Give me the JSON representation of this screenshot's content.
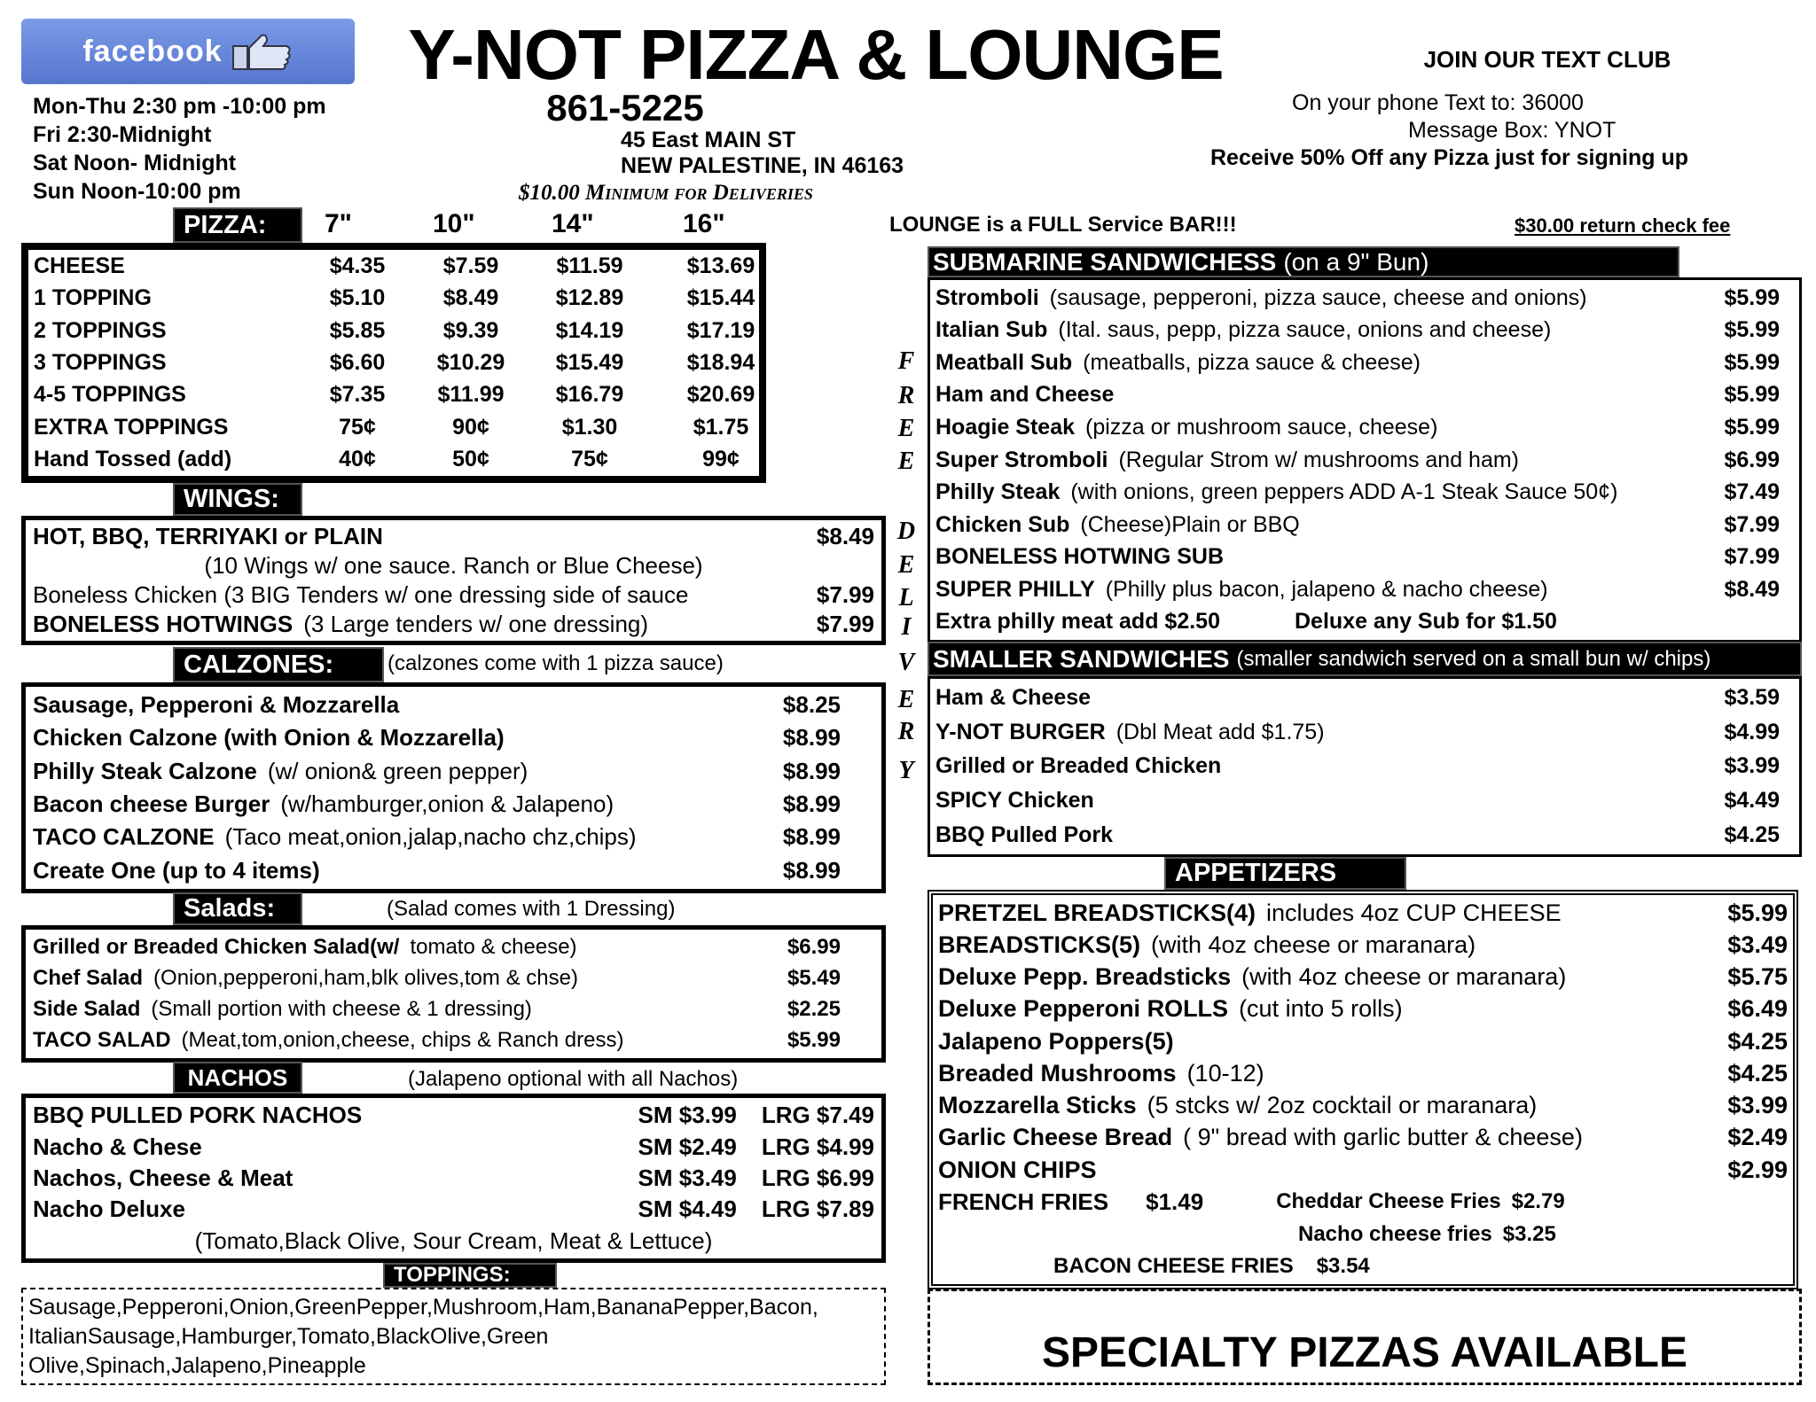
{
  "header": {
    "facebook_label": "facebook",
    "title": "Y-NOT PIZZA & LOUNGE",
    "phone": "861-5225",
    "hours": [
      "Mon-Thu 2:30 pm -10:00 pm",
      "Fri 2:30-Midnight",
      "Sat Noon- Midnight",
      "Sun Noon-10:00 pm"
    ],
    "address": [
      "45 East MAIN ST",
      "NEW PALESTINE, IN 46163"
    ],
    "delivery_minimum": "$10.00 Minimum for Deliveries",
    "text_club": {
      "title": "JOIN OUR TEXT CLUB",
      "line1": "On your phone Text to: 36000",
      "line2": "Message Box: YNOT",
      "line3": "Receive 50% Off any Pizza just for signing up"
    },
    "lounge": "LOUNGE is a FULL Service BAR!!!",
    "check_fee": "$30.00 return check fee"
  },
  "pizza": {
    "title": "PIZZA:",
    "sizes": [
      "7\"",
      "10\"",
      "14\"",
      "16\""
    ],
    "rows": [
      {
        "name": "CHEESE",
        "prices": [
          "$4.35",
          "$7.59",
          "$11.59",
          "$13.69"
        ]
      },
      {
        "name": "1 TOPPING",
        "prices": [
          "$5.10",
          "$8.49",
          "$12.89",
          "$15.44"
        ]
      },
      {
        "name": "2 TOPPINGS",
        "prices": [
          "$5.85",
          "$9.39",
          "$14.19",
          "$17.19"
        ]
      },
      {
        "name": "3 TOPPINGS",
        "prices": [
          "$6.60",
          "$10.29",
          "$15.49",
          "$18.94"
        ]
      },
      {
        "name": "4-5 TOPPINGS",
        "prices": [
          "$7.35",
          "$11.99",
          "$16.79",
          "$20.69"
        ]
      },
      {
        "name": "EXTRA TOPPINGS",
        "prices": [
          "75¢",
          "90¢",
          "$1.30",
          "$1.75"
        ]
      },
      {
        "name": "Hand Tossed  (add)",
        "prices": [
          "40¢",
          "50¢",
          "75¢",
          "99¢"
        ]
      }
    ]
  },
  "wings": {
    "title": "WINGS:",
    "items": [
      {
        "name": "HOT, BBQ, TERRIYAKI or PLAIN",
        "price": "$8.49"
      },
      {
        "note": "(10 Wings w/ one sauce. Ranch or Blue Cheese)"
      },
      {
        "desc": "Boneless Chicken  (3 BIG Tenders w/ one dressing side of sauce",
        "price": "$7.99"
      },
      {
        "name": "BONELESS HOTWINGS",
        "desc": "(3 Large tenders w/ one dressing)",
        "price": "$7.99"
      }
    ]
  },
  "calzones": {
    "title": "CALZONES:",
    "note": "(calzones come with 1 pizza sauce)",
    "items": [
      {
        "name": "Sausage, Pepperoni & Mozzarella",
        "price": "$8.25"
      },
      {
        "name": "Chicken Calzone (with Onion & Mozzarella)",
        "price": "$8.99"
      },
      {
        "name": "Philly Steak Calzone",
        "desc": "(w/ onion& green pepper)",
        "price": "$8.99"
      },
      {
        "name": "Bacon cheese Burger",
        "desc": "(w/hamburger,onion & Jalapeno)",
        "price": "$8.99"
      },
      {
        "name": "TACO CALZONE",
        "desc": "(Taco meat,onion,jalap,nacho chz,chips)",
        "price": "$8.99"
      },
      {
        "name": "Create One (up to 4 items)",
        "price": "$8.99"
      }
    ]
  },
  "salads": {
    "title": "Salads:",
    "note": "(Salad comes with 1 Dressing)",
    "items": [
      {
        "name": "Grilled or Breaded Chicken Salad(w/",
        "desc": "tomato & cheese)",
        "price": "$6.99"
      },
      {
        "name": "Chef Salad",
        "desc": "(Onion,pepperoni,ham,blk olives,tom & chse)",
        "price": "$5.49"
      },
      {
        "name": "Side Salad",
        "desc": "(Small portion with cheese & 1 dressing)",
        "price": "$2.25"
      },
      {
        "name": "TACO SALAD",
        "desc": "(Meat,tom,onion,cheese, chips & Ranch dress)",
        "price": "$5.99"
      }
    ]
  },
  "nachos": {
    "title": "NACHOS",
    "note": "(Jalapeno optional with all Nachos)",
    "items": [
      {
        "name": "BBQ PULLED PORK NACHOS",
        "sm": "SM $3.99",
        "lrg": "LRG $7.49"
      },
      {
        "name": "Nacho & Chese",
        "sm": "SM $2.49",
        "lrg": "LRG $4.99"
      },
      {
        "name": "Nachos, Cheese & Meat",
        "sm": "SM $3.49",
        "lrg": "LRG $6.99"
      },
      {
        "name": "Nacho Deluxe",
        "sm": "SM $4.49",
        "lrg": "LRG $7.89"
      },
      {
        "note": "(Tomato,Black Olive, Sour Cream, Meat & Lettuce)"
      }
    ]
  },
  "toppings": {
    "title": "TOPPINGS:",
    "lines": [
      "Sausage,Pepperoni,Onion,GreenPepper,Mushroom,Ham,BananaPepper,Bacon,",
      "ItalianSausage,Hamburger,Tomato,BlackOlive,Green",
      "Olive,Spinach,Jalapeno,Pineapple"
    ]
  },
  "subs": {
    "title": "SUBMARINE SANDWICHESS",
    "subtitle": "(on a 9\" Bun)",
    "items": [
      {
        "name": "Stromboli",
        "desc": "(sausage, pepperoni, pizza sauce, cheese and onions)",
        "price": "$5.99"
      },
      {
        "name": "Italian Sub",
        "desc": "(Ital. saus, pepp, pizza sauce, onions and cheese)",
        "price": "$5.99"
      },
      {
        "name": "Meatball Sub",
        "desc": "(meatballs, pizza sauce & cheese)",
        "price": "$5.99"
      },
      {
        "name": "Ham and Cheese",
        "price": "$5.99"
      },
      {
        "name": "Hoagie Steak",
        "desc": "(pizza or mushroom sauce, cheese)",
        "price": "$5.99"
      },
      {
        "name": "Super Stromboli",
        "desc": "(Regular Strom w/ mushrooms and ham)",
        "price": "$6.99"
      },
      {
        "name": "Philly Steak",
        "desc": "(with onions, green peppers ADD A-1 Steak Sauce  50¢)",
        "price": "$7.49"
      },
      {
        "name": "Chicken Sub",
        "desc": "(Cheese)Plain or BBQ",
        "price": "$7.99"
      },
      {
        "name": "BONELESS HOTWING SUB",
        "price": "$7.99"
      },
      {
        "name": "SUPER PHILLY",
        "desc": "(Philly plus bacon, jalapeno & nacho cheese)",
        "price": "$8.49"
      }
    ],
    "extra_meat": "Extra philly meat add $2.50",
    "deluxe": "Deluxe any Sub for  $1.50"
  },
  "free_delivery_letters": [
    "F",
    "R",
    "E",
    "E",
    "D",
    "E",
    "L",
    "I",
    "V",
    "E",
    "R",
    "Y"
  ],
  "smaller": {
    "title": "SMALLER SANDWICHES",
    "subtitle": "(smaller sandwich served on a small bun w/ chips)",
    "items": [
      {
        "name": "Ham & Cheese",
        "price": "$3.59"
      },
      {
        "name": "Y-NOT BURGER",
        "desc": "(Dbl Meat add $1.75)",
        "price": "$4.99"
      },
      {
        "name": "Grilled or Breaded Chicken",
        "price": "$3.99"
      },
      {
        "name": "SPICY Chicken",
        "price": "$4.49"
      },
      {
        "name": "BBQ Pulled Pork",
        "price": "$4.25"
      }
    ]
  },
  "appetizers": {
    "title": "APPETIZERS",
    "items": [
      {
        "name": "PRETZEL BREADSTICKS(4)",
        "desc": "includes 4oz CUP CHEESE",
        "price": "$5.99"
      },
      {
        "name": "BREADSTICKS(5)",
        "desc": "(with 4oz cheese or maranara)",
        "price": "$3.49"
      },
      {
        "name": "Deluxe Pepp. Breadsticks",
        "desc": "(with 4oz cheese or maranara)",
        "price": "$5.75"
      },
      {
        "name": "Deluxe Pepperoni ROLLS",
        "desc": "(cut into 5 rolls)",
        "price": "$6.49"
      },
      {
        "name": "Jalapeno Poppers(5)",
        "price": "$4.25"
      },
      {
        "name": "Breaded Mushrooms",
        "desc": "(10-12)",
        "price": "$4.25"
      },
      {
        "name": "Mozzarella Sticks",
        "desc": "(5 stcks w/ 2oz cocktail or maranara)",
        "price": "$3.99"
      },
      {
        "name": "Garlic Cheese Bread",
        "desc": "( 9\" bread with garlic butter & cheese)",
        "price": "$2.49"
      },
      {
        "name": "ONION CHIPS",
        "price": "$2.99"
      }
    ],
    "fries": {
      "french": "FRENCH FRIES",
      "french_price": "$1.49",
      "cheddar": "Cheddar Cheese Fries",
      "cheddar_price": "$2.79",
      "nacho": "Nacho cheese fries",
      "nacho_price": "$3.25",
      "bacon": "BACON CHEESE FRIES",
      "bacon_price": "$3.54"
    }
  },
  "specialty": "SPECIALTY PIZZAS AVAILABLE"
}
